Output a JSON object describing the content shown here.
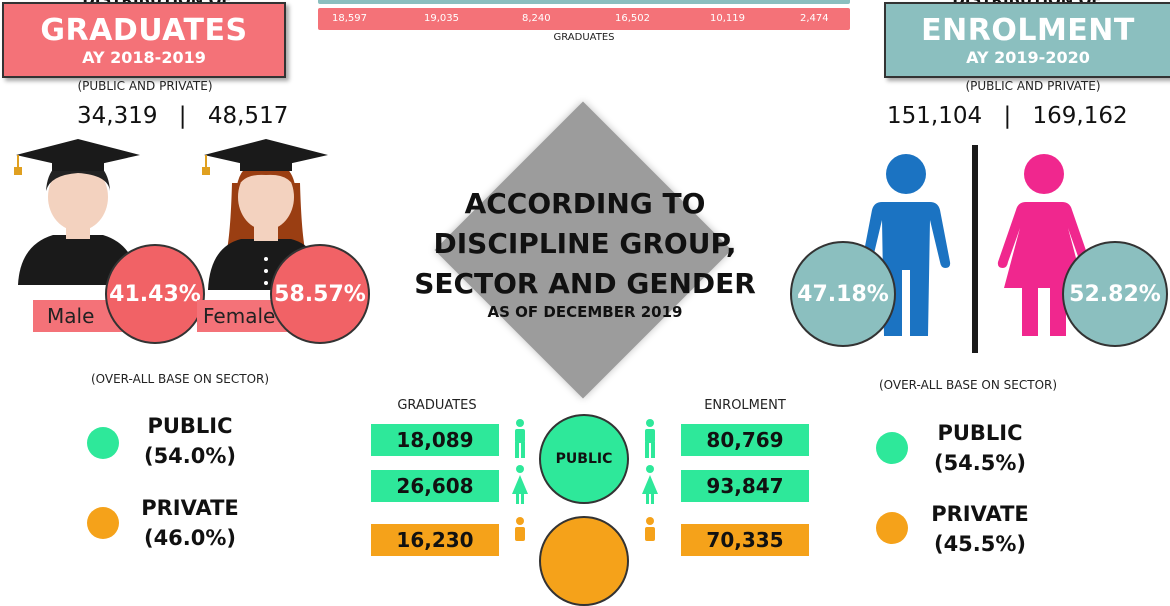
{
  "colors": {
    "salmon": "#f47278",
    "teal": "#8bbfbf",
    "green": "#2ee89a",
    "orange": "#f5a21a",
    "blue": "#1b73c2",
    "pink": "#f0278e",
    "dark": "#1a1a1a"
  },
  "left": {
    "cut_title": "DISTRIBUTION OF",
    "banner_title": "GRADUATES",
    "banner_year": "AY 2018-2019",
    "note": "(PUBLIC AND PRIVATE)",
    "male_count": "34,319",
    "separator": "|",
    "female_count": "48,517",
    "male_label": "Male",
    "female_label": "Female",
    "male_pct": "41.43%",
    "female_pct": "58.57%",
    "sector_note": "(OVER-ALL BASE ON SECTOR)",
    "public_label": "PUBLIC",
    "public_pct": "(54.0%)",
    "private_label": "PRIVATE",
    "private_pct": "(46.0%)"
  },
  "top_table": {
    "values": [
      "18,597",
      "19,035",
      "8,240",
      "16,502",
      "10,119",
      "2,474"
    ],
    "caption": "GRADUATES"
  },
  "center": {
    "line1": "ACCORDING TO",
    "line2": "DISCIPLINE GROUP,",
    "line3": "SECTOR AND GENDER",
    "subline": "AS OF DECEMBER 2019",
    "graduates_header": "GRADUATES",
    "enrolment_header": "ENROLMENT",
    "public_label": "PUBLIC",
    "grad_public_male": "18,089",
    "grad_public_female": "26,608",
    "grad_private_male": "16,230",
    "enrol_public_male": "80,769",
    "enrol_public_female": "93,847",
    "enrol_private_male": "70,335"
  },
  "right": {
    "cut_title": "DISTRIBUTION OF",
    "banner_title": "ENROLMENT",
    "banner_year": "AY 2019-2020",
    "note": "(PUBLIC AND PRIVATE)",
    "male_count": "151,104",
    "separator": "|",
    "female_count": "169,162",
    "male_pct": "47.18%",
    "female_pct": "52.82%",
    "sector_note": "(OVER-ALL BASE ON SECTOR)",
    "public_label": "PUBLIC",
    "public_pct": "(54.5%)",
    "private_label": "PRIVATE",
    "private_pct": "(45.5%)"
  }
}
